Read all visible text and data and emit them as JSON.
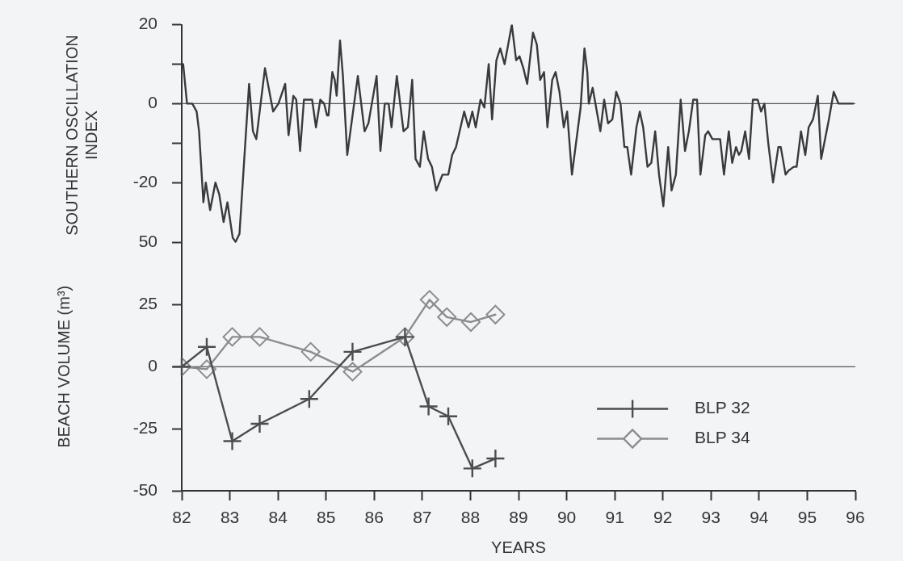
{
  "chart_data": [
    {
      "type": "line",
      "ylabel": "SOUTHERN OSCILLATION INDEX",
      "color": "#3a3a3a",
      "xlim": [
        82,
        96
      ],
      "ylim": [
        -36,
        20
      ],
      "yticks": [
        -20,
        {
          "value": -10,
          "label": null
        },
        0,
        {
          "value": 10,
          "label": null
        },
        20
      ],
      "tick_labels": "y",
      "ref_lines": [
        {
          "axis": "y",
          "value": 0,
          "color": "#555555"
        }
      ],
      "x": [
        82.03,
        82.11,
        82.22,
        82.31,
        82.36,
        82.45,
        82.5,
        82.59,
        82.7,
        82.78,
        82.87,
        82.95,
        83.06,
        83.12,
        83.2,
        83.4,
        83.48,
        83.55,
        83.73,
        83.9,
        84.01,
        84.15,
        84.22,
        84.32,
        84.38,
        84.46,
        84.54,
        84.65,
        84.71,
        84.79,
        84.88,
        84.96,
        85.02,
        85.05,
        85.13,
        85.18,
        85.22,
        85.29,
        85.35,
        85.44,
        85.66,
        85.8,
        85.88,
        86.05,
        86.13,
        86.22,
        86.3,
        86.36,
        86.47,
        86.61,
        86.7,
        86.79,
        86.86,
        86.95,
        87.03,
        87.12,
        87.2,
        87.29,
        87.42,
        87.54,
        87.62,
        87.7,
        87.87,
        87.96,
        88.04,
        88.11,
        88.21,
        88.29,
        88.38,
        88.45,
        88.54,
        88.62,
        88.71,
        88.86,
        88.95,
        89.02,
        89.1,
        89.18,
        89.3,
        89.38,
        89.45,
        89.53,
        89.6,
        89.7,
        89.77,
        89.85,
        89.94,
        90.01,
        90.11,
        90.29,
        90.37,
        90.43,
        90.46,
        90.54,
        90.7,
        90.78,
        90.86,
        90.95,
        91.03,
        91.12,
        91.2,
        91.26,
        91.34,
        91.45,
        91.52,
        91.59,
        91.68,
        91.76,
        91.84,
        91.92,
        92.01,
        92.11,
        92.18,
        92.27,
        92.37,
        92.46,
        92.54,
        92.63,
        92.71,
        92.78,
        92.88,
        92.94,
        93.03,
        93.1,
        93.19,
        93.27,
        93.37,
        93.44,
        93.52,
        93.58,
        93.63,
        93.71,
        93.79,
        93.87,
        93.97,
        94.04,
        94.11,
        94.19,
        94.29,
        94.4,
        94.45,
        94.55,
        94.61,
        94.72,
        94.78,
        94.87,
        94.96,
        95.03,
        95.12,
        95.22,
        95.29,
        95.45,
        95.55,
        95.65,
        95.95
      ],
      "values": [
        10,
        0,
        0,
        -2,
        -7,
        -25,
        -20,
        -27,
        -20,
        -23,
        -30,
        -25,
        -34,
        -35,
        -33,
        5,
        -7,
        -9,
        9,
        -2,
        0,
        5,
        -8,
        2,
        1,
        -12,
        1,
        1,
        1,
        -6,
        1,
        0,
        -3,
        -3,
        8,
        6,
        2,
        16,
        7,
        -13,
        7,
        -7,
        -5,
        7,
        -12,
        0,
        0,
        -6,
        7,
        -7,
        -6,
        6,
        -14,
        -16,
        -7,
        -14,
        -16,
        -22,
        -18,
        -18,
        -13,
        -11,
        -2,
        -6,
        -2,
        -6,
        1,
        -1,
        10,
        -4,
        11,
        14,
        10,
        20,
        11,
        12,
        9,
        5,
        18,
        15,
        6,
        8,
        -6,
        6,
        8,
        3,
        -6,
        -2,
        -18,
        -1,
        14,
        8,
        0,
        4,
        -7,
        1,
        -5,
        -4,
        3,
        0,
        -11,
        -11,
        -18,
        -6,
        -2,
        -6,
        -16,
        -15,
        -7,
        -18,
        -26,
        -11,
        -22,
        -18,
        1,
        -12,
        -7,
        1,
        1,
        -18,
        -8,
        -7,
        -9,
        -9,
        -9,
        -18,
        -7,
        -15,
        -11,
        -13,
        -12,
        -7,
        -14,
        1,
        1,
        -2,
        0,
        -10,
        -20,
        -11,
        -11,
        -18,
        -17,
        -16,
        -16,
        -7,
        -13,
        -6,
        -4,
        2,
        -14,
        -4,
        3,
        0,
        0
      ]
    },
    {
      "type": "line",
      "xlabel": "YEARS",
      "ylabel": "BEACH VOLUME (m³)",
      "xlim": [
        82,
        96
      ],
      "xticks": [
        82,
        83,
        84,
        85,
        86,
        87,
        88,
        89,
        90,
        91,
        92,
        93,
        94,
        95,
        96
      ],
      "ylim": [
        -50,
        50
      ],
      "yticks": [
        -50,
        -25,
        0,
        25,
        50
      ],
      "ref_lines": [
        {
          "axis": "y",
          "value": 0,
          "color": "#555555"
        }
      ],
      "legend": "bottom right",
      "series": [
        {
          "name": "BLP 32",
          "color": "#4d4d4d",
          "marker": "cross",
          "x": [
            82.0,
            82.52,
            83.05,
            83.62,
            84.65,
            85.55,
            86.64,
            87.13,
            87.54,
            88.04,
            88.52
          ],
          "values": [
            0,
            8,
            -30,
            -23,
            -13,
            6,
            12,
            -16,
            -20,
            -41,
            -37
          ]
        },
        {
          "name": "BLP 34",
          "color": "#8c8c8c",
          "marker": "diamond",
          "x": [
            82.0,
            82.52,
            83.05,
            83.62,
            84.68,
            85.55,
            86.64,
            87.15,
            87.51,
            88.01,
            88.52
          ],
          "values": [
            0,
            -1,
            12,
            12,
            6,
            -2,
            12,
            27,
            20,
            18,
            21
          ]
        }
      ]
    }
  ]
}
